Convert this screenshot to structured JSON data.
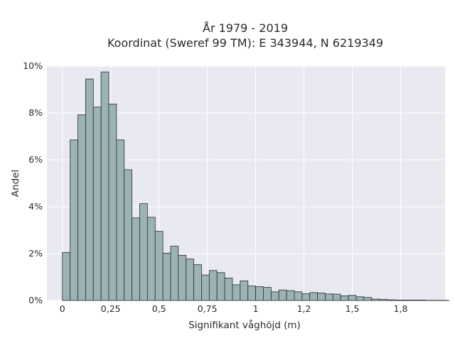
{
  "chart_data": {
    "type": "bar",
    "title": "År 1979 - 2019",
    "subtitle": "Koordinat (Sweref 99 TM): E 343944, N 6219349",
    "xlabel": "Signifikant våghöjd (m)",
    "ylabel": "Andel",
    "xlim": [
      -0.08,
      1.98
    ],
    "ylim": [
      0,
      10
    ],
    "x_ticks": [
      0,
      0.25,
      0.5,
      0.75,
      1,
      1.25,
      1.5,
      1.75
    ],
    "x_tick_labels": [
      "0",
      "0,25",
      "0,5",
      "0,75",
      "1",
      "1,2",
      "1,5",
      "1,8"
    ],
    "y_ticks": [
      0,
      2,
      4,
      6,
      8,
      10
    ],
    "y_tick_labels": [
      "0%",
      "2%",
      "4%",
      "6%",
      "8%",
      "10%"
    ],
    "grid": true,
    "bin_width": 0.04,
    "bin_start": 0,
    "values": [
      2.05,
      6.85,
      7.92,
      9.45,
      8.25,
      9.75,
      8.38,
      6.85,
      5.58,
      3.52,
      4.13,
      3.55,
      2.95,
      2.02,
      2.32,
      1.93,
      1.77,
      1.53,
      1.09,
      1.28,
      1.19,
      0.96,
      0.67,
      0.84,
      0.62,
      0.59,
      0.56,
      0.37,
      0.45,
      0.42,
      0.37,
      0.29,
      0.34,
      0.32,
      0.28,
      0.27,
      0.2,
      0.22,
      0.16,
      0.13,
      0.06,
      0.05,
      0.03,
      0.02,
      0.02,
      0.02,
      0.02,
      0.01,
      0.01,
      0.01
    ],
    "colors": {
      "bar_fill": "#9bb3b3",
      "bar_stroke": "#2f2f2f",
      "plot_background": "#e9e9f1",
      "grid": "#ffffff"
    }
  }
}
